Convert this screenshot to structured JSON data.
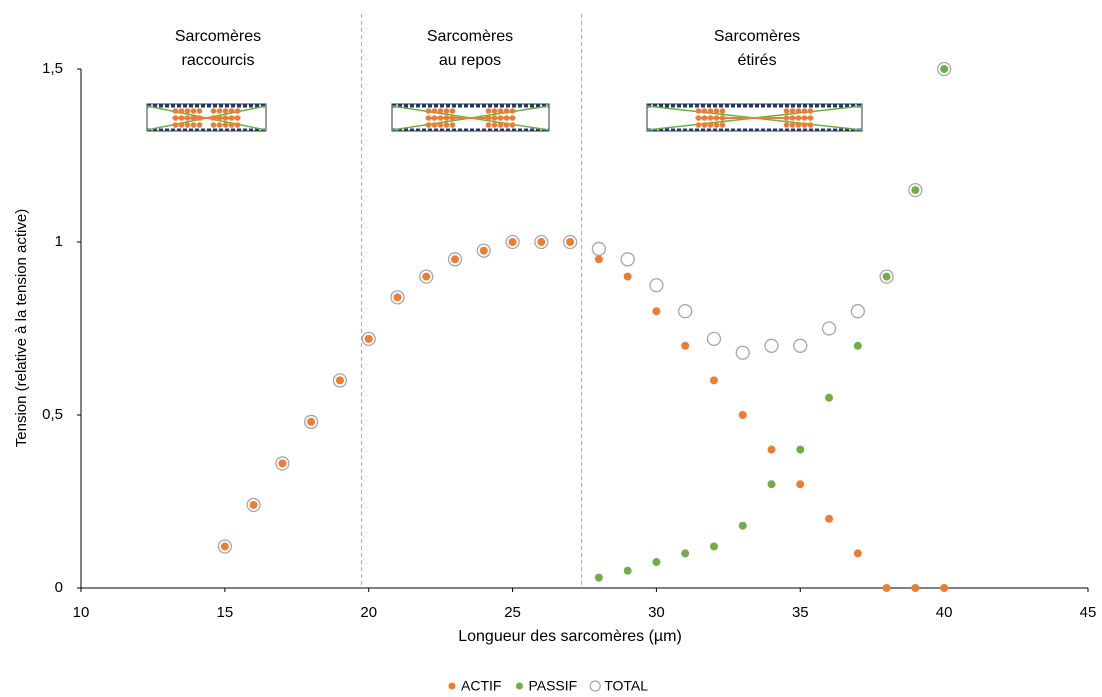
{
  "chart_data": {
    "type": "scatter",
    "x_label": "Longueur des sarcomères (µm)",
    "y_label": "Tension (relative à la tension active)",
    "xlim": [
      10,
      45
    ],
    "xticks": [
      10,
      15,
      20,
      25,
      30,
      35,
      40,
      45
    ],
    "ylim": [
      0,
      1.5
    ],
    "yticks": [
      0,
      {
        "value": 0.5,
        "label": "0,5"
      },
      1,
      {
        "value": 1.5,
        "label": "1,5"
      }
    ],
    "region_boundaries": [
      19.75,
      27.4
    ],
    "regions": [
      {
        "label": [
          "Sarcomères",
          "raccourcis"
        ]
      },
      {
        "label": [
          "Sarcomères",
          "au repos"
        ]
      },
      {
        "label": [
          "Sarcomères",
          "étirés"
        ]
      }
    ],
    "series": [
      {
        "name": "TOTAL",
        "color": "#a6a6a6",
        "marker": "hollow",
        "x": [
          15,
          16,
          17,
          18,
          19,
          20,
          21,
          22,
          23,
          24,
          25,
          26,
          27,
          28,
          29,
          30,
          31,
          32,
          33,
          34,
          35,
          36,
          37,
          38,
          39,
          40
        ],
        "values": [
          0.12,
          0.24,
          0.36,
          0.48,
          0.6,
          0.72,
          0.84,
          0.9,
          0.95,
          0.975,
          1,
          1,
          1,
          0.98,
          0.95,
          0.875,
          0.8,
          0.72,
          0.68,
          0.7,
          0.7,
          0.75,
          0.8,
          0.9,
          1.15,
          1.5
        ]
      },
      {
        "name": "ACTIF",
        "color": "#ed7d31",
        "marker": "filled",
        "x": [
          15,
          16,
          17,
          18,
          19,
          20,
          21,
          22,
          23,
          24,
          25,
          26,
          27,
          28,
          29,
          30,
          31,
          32,
          33,
          34,
          35,
          36,
          37,
          38,
          39,
          40
        ],
        "values": [
          0.12,
          0.24,
          0.36,
          0.48,
          0.6,
          0.72,
          0.84,
          0.9,
          0.95,
          0.975,
          1,
          1,
          1,
          0.95,
          0.9,
          0.8,
          0.7,
          0.6,
          0.5,
          0.4,
          0.3,
          0.2,
          0.1,
          0,
          0,
          0
        ]
      },
      {
        "name": "PASSIF",
        "color": "#70ad47",
        "marker": "filled",
        "x": [
          28,
          29,
          30,
          31,
          32,
          33,
          34,
          35,
          36,
          37,
          38,
          39,
          40
        ],
        "values": [
          0.03,
          0.05,
          0.075,
          0.1,
          0.12,
          0.18,
          0.3,
          0.4,
          0.55,
          0.7,
          0.9,
          1.15,
          1.5
        ]
      }
    ],
    "legend_order": [
      1,
      2,
      0
    ]
  }
}
